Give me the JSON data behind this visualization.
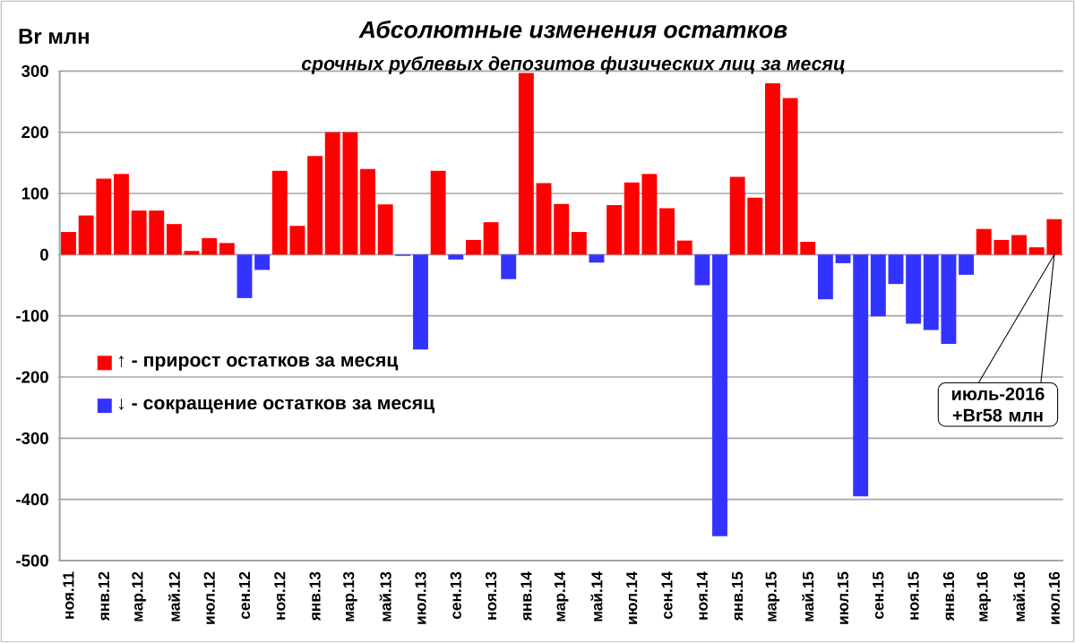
{
  "chart_data": {
    "type": "bar",
    "title": "Абсолютные изменения остатков",
    "subtitle": "срочных рублевых депозитов физических лиц за месяц",
    "ylabel": "Br млн",
    "categories": [
      "ноя.11",
      null,
      "янв.12",
      null,
      "мар.12",
      null,
      "май.12",
      null,
      "июл.12",
      null,
      "сен.12",
      null,
      "ноя.12",
      null,
      "янв.13",
      null,
      "мар.13",
      null,
      "май.13",
      null,
      "июл.13",
      null,
      "сен.13",
      null,
      "ноя.13",
      null,
      "янв.14",
      null,
      "мар.14",
      null,
      "май.14",
      null,
      "июл.14",
      null,
      "сен.14",
      null,
      "ноя.14",
      null,
      "янв.15",
      null,
      "мар.15",
      null,
      "май.15",
      null,
      "июл.15",
      null,
      "сен.15",
      null,
      "ноя.15",
      null,
      "янв.16",
      null,
      "мар.16",
      null,
      "май.16",
      null,
      "июл.16"
    ],
    "series": [
      {
        "name": "↑ - прирост остатков за месяц",
        "color": "#ff0000",
        "values": [
          37,
          64,
          124,
          132,
          72,
          72,
          50,
          6,
          27,
          19,
          null,
          null,
          137,
          47,
          161,
          200,
          200,
          140,
          82,
          null,
          null,
          137,
          null,
          24,
          53,
          null,
          297,
          117,
          83,
          37,
          null,
          81,
          118,
          132,
          76,
          23,
          null,
          null,
          127,
          93,
          280,
          256,
          21,
          null,
          null,
          null,
          null,
          null,
          null,
          null,
          null,
          null,
          42,
          24,
          32,
          12,
          58
        ]
      },
      {
        "name": "↓ - сокращение остатков за месяц",
        "color": "#3333ff",
        "values": [
          null,
          null,
          null,
          null,
          null,
          null,
          null,
          null,
          null,
          null,
          -71,
          -25,
          null,
          null,
          null,
          null,
          null,
          null,
          null,
          -2,
          -155,
          null,
          -8,
          null,
          null,
          -40,
          null,
          null,
          null,
          null,
          -13,
          null,
          null,
          null,
          null,
          null,
          -50,
          -460,
          null,
          null,
          null,
          null,
          null,
          -73,
          -14,
          -395,
          -101,
          -48,
          -113,
          -123,
          -146,
          -33,
          null,
          null,
          null,
          null,
          null
        ]
      }
    ],
    "ylim": [
      -500,
      300
    ],
    "yticks": [
      -500,
      -400,
      -300,
      -200,
      -100,
      0,
      100,
      200,
      300
    ],
    "grid": "y",
    "legend": "left",
    "annotations": [
      "июль-2016 +Br58 млн"
    ]
  }
}
